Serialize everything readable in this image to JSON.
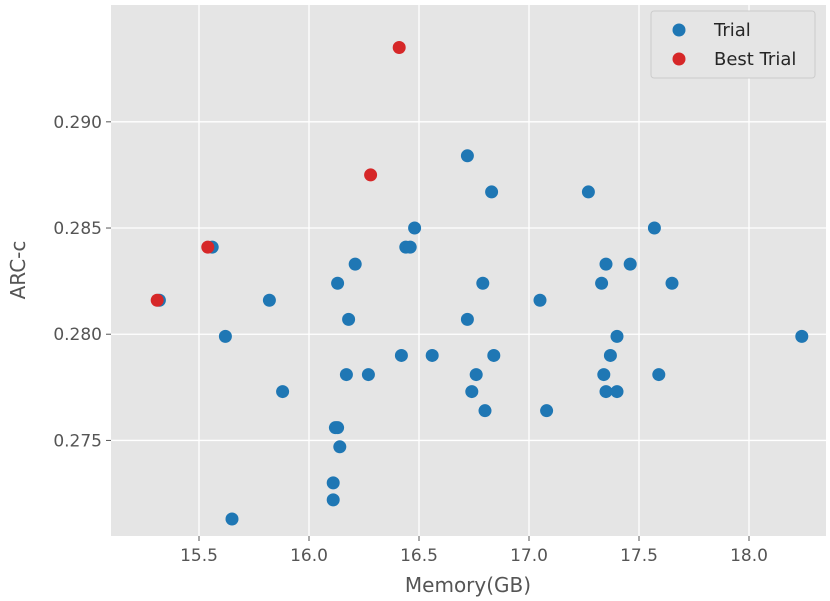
{
  "chart_data": {
    "type": "scatter",
    "title": "",
    "xlabel": "Memory(GB)",
    "ylabel": "ARC-c",
    "xlim": [
      15.1,
      18.35
    ],
    "ylim": [
      0.2705,
      0.2955
    ],
    "x_ticks": [
      15.5,
      16.0,
      16.5,
      17.0,
      17.5,
      18.0
    ],
    "x_tick_labels": [
      "15.5",
      "16.0",
      "16.5",
      "17.0",
      "17.5",
      "18.0"
    ],
    "y_ticks": [
      0.275,
      0.28,
      0.285,
      0.29
    ],
    "y_tick_labels": [
      "0.275",
      "0.280",
      "0.285",
      "0.290"
    ],
    "grid": true,
    "legend_position": "top-right",
    "series": [
      {
        "name": "Trial",
        "color": "#1f77b4",
        "points": [
          [
            15.32,
            0.2816
          ],
          [
            15.56,
            0.2841
          ],
          [
            15.62,
            0.2799
          ],
          [
            15.65,
            0.2713
          ],
          [
            15.82,
            0.2816
          ],
          [
            15.88,
            0.2773
          ],
          [
            16.11,
            0.2722
          ],
          [
            16.11,
            0.273
          ],
          [
            16.12,
            0.2756
          ],
          [
            16.13,
            0.2756
          ],
          [
            16.13,
            0.2824
          ],
          [
            16.14,
            0.2747
          ],
          [
            16.17,
            0.2781
          ],
          [
            16.18,
            0.2807
          ],
          [
            16.21,
            0.2833
          ],
          [
            16.27,
            0.2781
          ],
          [
            16.42,
            0.279
          ],
          [
            16.44,
            0.2841
          ],
          [
            16.46,
            0.2841
          ],
          [
            16.48,
            0.285
          ],
          [
            16.56,
            0.279
          ],
          [
            16.72,
            0.2884
          ],
          [
            16.72,
            0.2807
          ],
          [
            16.74,
            0.2773
          ],
          [
            16.76,
            0.2781
          ],
          [
            16.79,
            0.2824
          ],
          [
            16.8,
            0.2764
          ],
          [
            16.83,
            0.2867
          ],
          [
            16.84,
            0.279
          ],
          [
            17.05,
            0.2816
          ],
          [
            17.08,
            0.2764
          ],
          [
            17.27,
            0.2867
          ],
          [
            17.33,
            0.2824
          ],
          [
            17.34,
            0.2781
          ],
          [
            17.35,
            0.2833
          ],
          [
            17.35,
            0.2773
          ],
          [
            17.37,
            0.279
          ],
          [
            17.4,
            0.2773
          ],
          [
            17.4,
            0.2799
          ],
          [
            17.46,
            0.2833
          ],
          [
            17.57,
            0.285
          ],
          [
            17.59,
            0.2781
          ],
          [
            17.65,
            0.2824
          ],
          [
            18.24,
            0.2799
          ]
        ]
      },
      {
        "name": "Best Trial",
        "color": "#d62728",
        "points": [
          [
            15.31,
            0.2816
          ],
          [
            15.54,
            0.2841
          ],
          [
            16.28,
            0.2875
          ],
          [
            16.41,
            0.2935
          ]
        ]
      }
    ]
  }
}
